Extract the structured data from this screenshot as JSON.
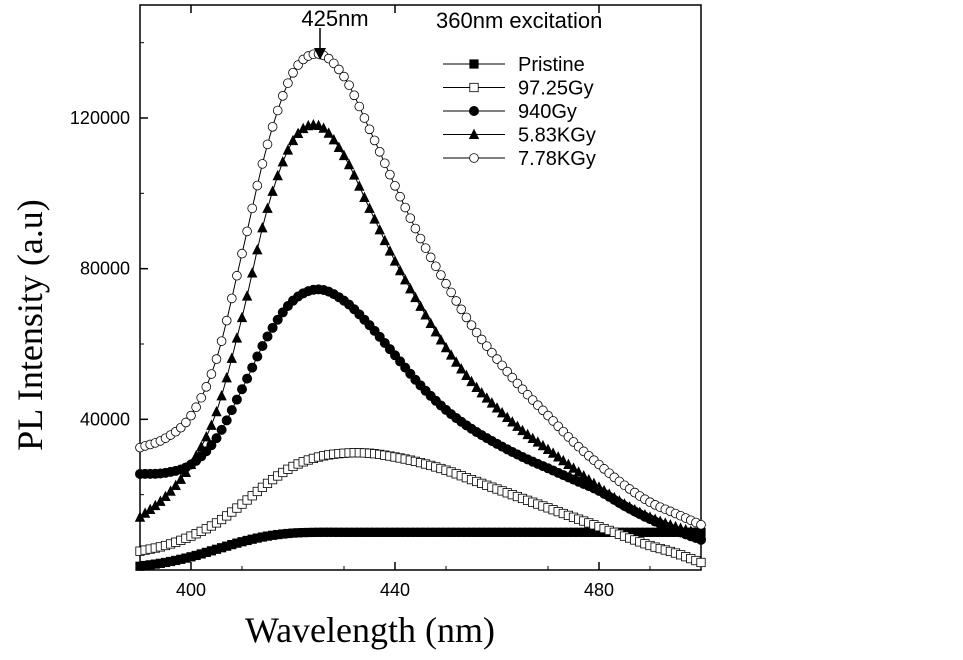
{
  "chart_data": {
    "type": "scatter",
    "xlabel": "Wavelength (nm)",
    "ylabel": "PL Intensity (a.u)",
    "xlim": [
      390,
      500
    ],
    "ylim": [
      0,
      150000
    ],
    "xticks": [
      400,
      440,
      480
    ],
    "yticks": [
      40000,
      80000,
      120000
    ],
    "grid": false,
    "legend_position": "top-right",
    "annotations": [
      {
        "text": "425nm",
        "arrow_x": 425
      },
      {
        "text": "360nm excitation"
      }
    ],
    "series": [
      {
        "name": "Pristine",
        "marker": "filled-square",
        "x": [
          390,
          395,
          400,
          405,
          410,
          415,
          420,
          425,
          430,
          440,
          450,
          460,
          470,
          480,
          490,
          495,
          500
        ],
        "y": [
          1000,
          2000,
          3500,
          5500,
          7500,
          9000,
          9800,
          10000,
          10000,
          10000,
          10000,
          10000,
          10000,
          10000,
          10000,
          10000,
          10000
        ]
      },
      {
        "name": "97.25Gy",
        "marker": "open-square",
        "x": [
          390,
          395,
          400,
          405,
          410,
          415,
          420,
          425,
          430,
          435,
          440,
          445,
          450,
          455,
          460,
          465,
          470,
          475,
          480,
          485,
          490,
          495,
          500
        ],
        "y": [
          5000,
          6500,
          9000,
          12500,
          17500,
          23000,
          27500,
          30000,
          31000,
          31000,
          30000,
          28500,
          26500,
          24000,
          21500,
          19000,
          16500,
          14000,
          11500,
          9000,
          6500,
          4500,
          2000
        ]
      },
      {
        "name": "940Gy",
        "marker": "filled-circle",
        "x": [
          390,
          395,
          400,
          405,
          410,
          415,
          420,
          425,
          430,
          435,
          440,
          445,
          450,
          455,
          460,
          465,
          470,
          475,
          480,
          485,
          490,
          495,
          500
        ],
        "y": [
          25500,
          25800,
          28000,
          35000,
          48000,
          62000,
          71500,
          74500,
          71500,
          65000,
          57000,
          49000,
          42500,
          37500,
          33500,
          30000,
          27000,
          24000,
          21000,
          17000,
          13500,
          10500,
          8000
        ]
      },
      {
        "name": "5.83KGy",
        "marker": "filled-triangle",
        "x": [
          390,
          395,
          400,
          405,
          410,
          415,
          420,
          425,
          430,
          435,
          440,
          445,
          450,
          455,
          460,
          465,
          470,
          475,
          480,
          485,
          490,
          495,
          500
        ],
        "y": [
          14000,
          19500,
          28000,
          42000,
          67000,
          96000,
          114000,
          118000,
          110000,
          96000,
          82000,
          70000,
          59000,
          50000,
          43000,
          37000,
          32000,
          27000,
          22000,
          17500,
          14000,
          11500,
          9500
        ]
      },
      {
        "name": "7.78KGy",
        "marker": "open-circle",
        "x": [
          390,
          395,
          400,
          405,
          410,
          415,
          420,
          425,
          430,
          435,
          440,
          445,
          450,
          455,
          460,
          465,
          470,
          475,
          480,
          485,
          490,
          495,
          500
        ],
        "y": [
          32500,
          35000,
          41000,
          56000,
          84000,
          113000,
          132000,
          137000,
          131000,
          117000,
          102000,
          88000,
          76000,
          65000,
          56000,
          48000,
          41000,
          34000,
          28000,
          22500,
          18000,
          15000,
          12000
        ]
      }
    ]
  }
}
